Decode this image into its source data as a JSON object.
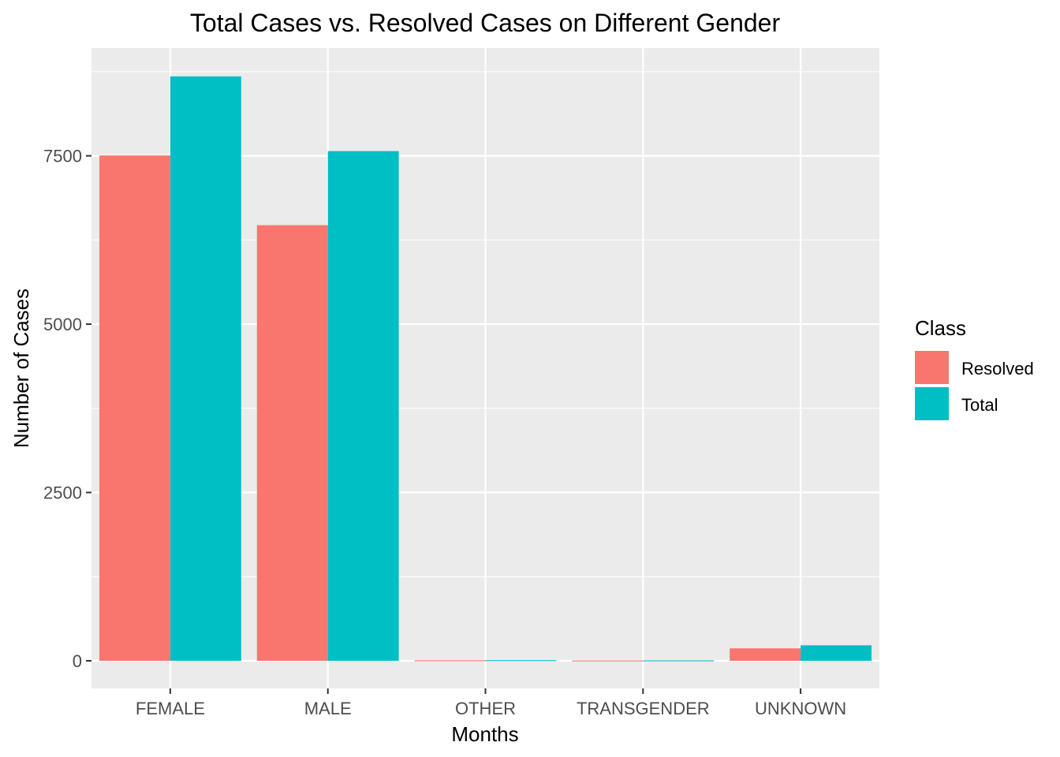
{
  "chart_data": {
    "type": "bar",
    "title": "Total Cases vs. Resolved Cases on Different Gender",
    "xlabel": "Months",
    "ylabel": "Number of Cases",
    "categories": [
      "FEMALE",
      "MALE",
      "OTHER",
      "TRANSGENDER",
      "UNKNOWN"
    ],
    "series": [
      {
        "name": "Resolved",
        "color": "#F8766D",
        "values": [
          7505,
          6470,
          8,
          5,
          185
        ]
      },
      {
        "name": "Total",
        "color": "#00BFC4",
        "values": [
          8680,
          7570,
          10,
          6,
          230
        ]
      }
    ],
    "ylim": [
      -410,
      9100
    ],
    "yticks": [
      0,
      2500,
      5000,
      7500
    ],
    "ytick_labels": [
      "0",
      "2500",
      "5000",
      "7500"
    ],
    "grid": true,
    "legend": {
      "title": "Class",
      "position": "right"
    },
    "panel_background": "#EBEBEB",
    "grid_color": "#FFFFFF"
  }
}
